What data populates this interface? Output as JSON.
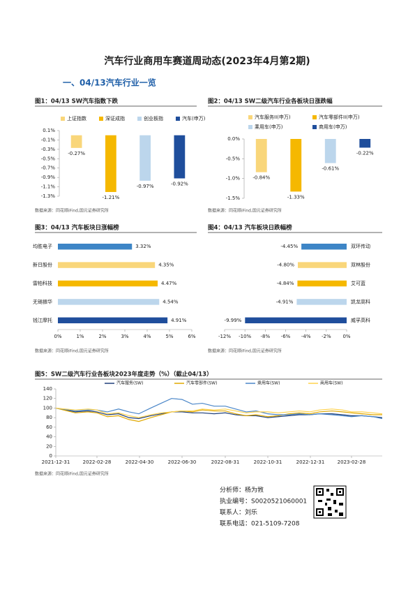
{
  "title": "汽车行业商用车赛道周动态(2023年4月第2期)",
  "section": "一、04/13汽车行业一览",
  "chart_data": [
    {
      "type": "bar",
      "title": "图1：04/13 SW汽车指数下跌",
      "categories": [
        "上证指数",
        "深证成指",
        "创业板指",
        "汽车(申万)"
      ],
      "values": [
        -0.27,
        -1.21,
        -0.97,
        -0.92
      ],
      "value_labels": [
        "-0.27%",
        "-1.21%",
        "-0.97%",
        "-0.92%"
      ],
      "colors": [
        "#f9d67a",
        "#f5b800",
        "#bcd6ec",
        "#1f4e9c"
      ],
      "ylim": [
        -1.3,
        0.1
      ],
      "yticks": [
        {
          "value": 0.1,
          "label": "0.1%"
        },
        {
          "value": -0.1,
          "label": "-0.1%"
        },
        {
          "value": -0.3,
          "label": "-0.3%"
        },
        {
          "value": -0.5,
          "label": "-0.5%"
        },
        {
          "value": -0.7,
          "label": "-0.7%"
        },
        {
          "value": -0.9,
          "label": "-0.9%"
        },
        {
          "value": -1.1,
          "label": "-1.1%"
        },
        {
          "value": -1.3,
          "label": "-1.3%"
        }
      ],
      "source": "数据来源：同花顺iFind,国元证券研究所"
    },
    {
      "type": "bar",
      "title": "图2：04/13 SW二级汽车行业各板块日涨跌幅",
      "categories": [
        "汽车服务II(申万)",
        "汽车零部件II(申万)",
        "乘用车(申万)",
        "商用车(申万)"
      ],
      "values": [
        -0.84,
        -1.33,
        -0.61,
        -0.22
      ],
      "value_labels": [
        "-0.84%",
        "-1.33%",
        "-0.61%",
        "-0.22%"
      ],
      "colors": [
        "#f9d67a",
        "#f5b800",
        "#bcd6ec",
        "#1f4e9c"
      ],
      "ylim": [
        -1.5,
        0
      ],
      "yticks": [
        {
          "value": 0,
          "label": "0.0%"
        },
        {
          "value": -0.5,
          "label": "-0.5%"
        },
        {
          "value": -1,
          "label": "-1.0%"
        },
        {
          "value": -1.5,
          "label": "-1.5%"
        }
      ],
      "source": "数据来源：同花顺iFind,国元证券研究所"
    },
    {
      "type": "barh",
      "title": "图3：04/13 汽车板块日涨幅榜",
      "categories": [
        "均胜电子",
        "新日股份",
        "雷柏科技",
        "无锡振华",
        "钱江摩托"
      ],
      "values": [
        3.32,
        4.35,
        4.47,
        4.54,
        4.91
      ],
      "value_labels": [
        "3.32%",
        "4.35%",
        "4.47%",
        "4.54%",
        "4.91%"
      ],
      "colors": [
        "#3d85c6",
        "#f9d67a",
        "#f5b800",
        "#bcd6ec",
        "#1f4e9c"
      ],
      "xlim": [
        0,
        6
      ],
      "xticks": [
        {
          "value": 0,
          "label": "0%"
        },
        {
          "value": 1,
          "label": "1%"
        },
        {
          "value": 2,
          "label": "2%"
        },
        {
          "value": 3,
          "label": "3%"
        },
        {
          "value": 4,
          "label": "4%"
        },
        {
          "value": 5,
          "label": "5%"
        },
        {
          "value": 6,
          "label": "6%"
        }
      ],
      "source": "数据来源：同花顺iFind,国元证券研究所"
    },
    {
      "type": "barh",
      "title": "图4：04/13 汽车板块日跌幅榜",
      "categories": [
        "双环传动",
        "双林股份",
        "艾可蓝",
        "凯龙高科",
        "威孚高科"
      ],
      "values": [
        -4.45,
        -4.8,
        -4.84,
        -4.91,
        -9.99
      ],
      "value_labels": [
        "-4.45%",
        "-4.80%",
        "-4.84%",
        "-4.91%",
        "-9.99%"
      ],
      "colors": [
        "#3d85c6",
        "#f9d67a",
        "#f5b800",
        "#bcd6ec",
        "#1f4e9c"
      ],
      "xlim": [
        -12,
        0
      ],
      "xticks": [
        {
          "value": -12,
          "label": "-12%"
        },
        {
          "value": -10,
          "label": "-10%"
        },
        {
          "value": -8,
          "label": "-8%"
        },
        {
          "value": -6,
          "label": "-6%"
        },
        {
          "value": -4,
          "label": "-4%"
        },
        {
          "value": -2,
          "label": "-2%"
        },
        {
          "value": 0,
          "label": "0%"
        }
      ],
      "source": "数据来源：同花顺iFind,国元证券研究所"
    },
    {
      "type": "line",
      "title": "图5：SW二级汽车行业各板块2023年度走势（%）（截止04/13）",
      "x": [
        "2021-12-31",
        "2022-01-14",
        "2022-01-28",
        "2022-02-15",
        "2022-02-28",
        "2022-03-15",
        "2022-03-31",
        "2022-04-15",
        "2022-04-29",
        "2022-05-16",
        "2022-05-31",
        "2022-06-15",
        "2022-06-30",
        "2022-07-15",
        "2022-07-29",
        "2022-08-15",
        "2022-08-31",
        "2022-09-15",
        "2022-09-30",
        "2022-10-14",
        "2022-10-31",
        "2022-11-15",
        "2022-11-30",
        "2022-12-15",
        "2022-12-30",
        "2023-01-13",
        "2023-01-31",
        "2023-02-15",
        "2023-02-28",
        "2023-03-15",
        "2023-03-31",
        "2023-04-13"
      ],
      "series": [
        {
          "name": "汽车服务(SW)",
          "color": "#1f3f7a",
          "values": [
            100,
            96,
            92,
            94,
            92,
            86,
            88,
            80,
            78,
            84,
            88,
            92,
            92,
            90,
            90,
            88,
            90,
            86,
            84,
            84,
            80,
            82,
            84,
            86,
            86,
            88,
            88,
            86,
            84,
            84,
            82,
            80
          ]
        },
        {
          "name": "汽车零部件(SW)",
          "color": "#e0a800",
          "values": [
            100,
            95,
            90,
            92,
            90,
            82,
            84,
            76,
            72,
            80,
            86,
            92,
            94,
            92,
            96,
            94,
            94,
            88,
            84,
            86,
            82,
            84,
            88,
            90,
            88,
            92,
            94,
            92,
            90,
            88,
            86,
            86
          ]
        },
        {
          "name": "乘用车(SW)",
          "color": "#4a86c8",
          "values": [
            100,
            97,
            94,
            96,
            96,
            92,
            98,
            92,
            88,
            100,
            110,
            120,
            118,
            108,
            110,
            104,
            104,
            98,
            92,
            94,
            88,
            86,
            86,
            88,
            86,
            88,
            86,
            84,
            82,
            84,
            82,
            78
          ]
        },
        {
          "name": "商用车(SW)",
          "color": "#ffd24d",
          "values": [
            100,
            98,
            96,
            98,
            96,
            88,
            90,
            84,
            80,
            86,
            90,
            92,
            94,
            94,
            98,
            96,
            98,
            94,
            90,
            92,
            92,
            90,
            92,
            94,
            92,
            96,
            98,
            96,
            92,
            92,
            90,
            88
          ]
        }
      ],
      "xlim": [
        "2021-12-31",
        "2023-04-13"
      ],
      "xticks": [
        "2021-12-31",
        "2022-02-28",
        "2022-04-30",
        "2022-06-30",
        "2022-08-31",
        "2022-10-31",
        "2022-12-31",
        "2023-02-28"
      ],
      "ylim": [
        0,
        140
      ],
      "yticks": [
        0,
        20,
        40,
        60,
        80,
        100,
        120,
        140
      ],
      "source": "数据来源：同花顺iFind,国元证券研究所"
    }
  ],
  "analyst": [
    "分析师：杨为敩",
    "执业编号：S0020521060001",
    "联系人：刘乐",
    "联系电话：021-5109-7208"
  ]
}
